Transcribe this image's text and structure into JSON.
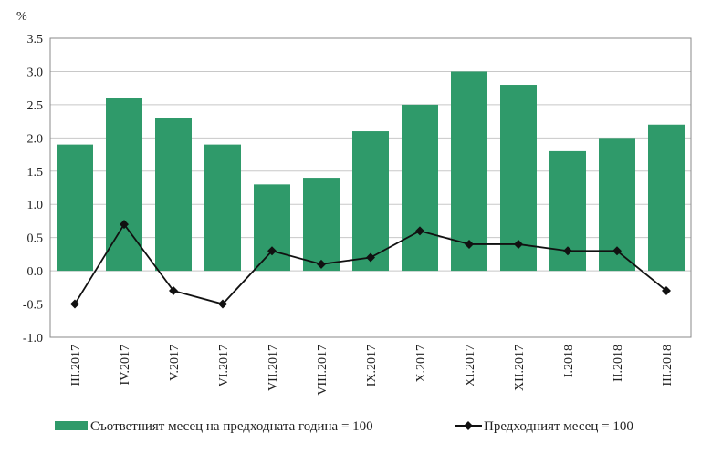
{
  "chart_data": {
    "type": "bar",
    "unit_label": "%",
    "categories": [
      "III.2017",
      "IV.2017",
      "V.2017",
      "VI.2017",
      "VII.2017",
      "VIII.2017",
      "IX.2017",
      "X.2017",
      "XI.2017",
      "XII.2017",
      "I.2018",
      "II.2018",
      "III.2018"
    ],
    "series": [
      {
        "name": "Съответният месец на предходната година = 100",
        "type": "bar",
        "color": "#2f9a6a",
        "values": [
          1.9,
          2.6,
          2.3,
          1.9,
          1.3,
          1.4,
          2.1,
          2.5,
          3.0,
          2.8,
          1.8,
          2.0,
          2.2
        ]
      },
      {
        "name": "Предходният месец = 100",
        "type": "line",
        "color": "#111111",
        "values": [
          -0.5,
          0.7,
          -0.3,
          -0.5,
          0.3,
          0.1,
          0.2,
          0.6,
          0.4,
          0.4,
          0.3,
          0.3,
          -0.3
        ]
      }
    ],
    "ylim": [
      -1.0,
      3.5
    ],
    "yticks": [
      "-1.0",
      "-0.5",
      "0.0",
      "0.5",
      "1.0",
      "1.5",
      "2.0",
      "2.5",
      "3.0",
      "3.5"
    ],
    "grid": true,
    "legend_position": "bottom"
  }
}
